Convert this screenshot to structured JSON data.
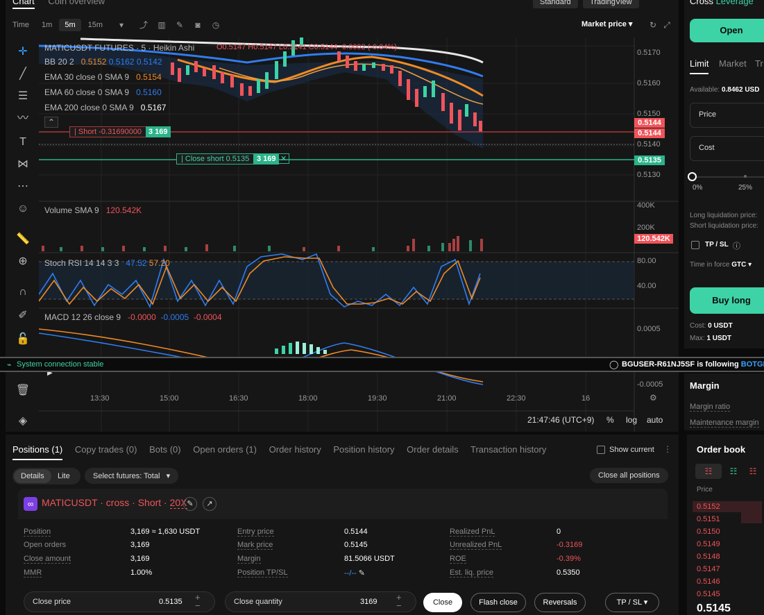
{
  "top": {
    "tabs": [
      "Chart",
      "Coin overview"
    ],
    "views": [
      "Standard",
      "TradingView"
    ],
    "timeframes": [
      "Time",
      "1m",
      "5m",
      "15m"
    ],
    "active_tf": "5m",
    "market_price": "Market price"
  },
  "chart": {
    "title": "MATICUSDT FUTURES · 5 · Heikin Ashi",
    "ohlc": "O0.5147 H0.5147 L0.5141 C0.5144 -0.0002 (-0.04%)",
    "bb": {
      "label": "BB 20 2",
      "v1": "0.5152",
      "v2": "0.5162",
      "v3": "0.5142"
    },
    "ema30": {
      "label": "EMA 30 close 0 SMA 9",
      "v": "0.5154"
    },
    "ema60": {
      "label": "EMA 60 close 0 SMA 9",
      "v": "0.5160"
    },
    "ema200": {
      "label": "EMA 200 close 0 SMA 9",
      "v": "0.5167"
    },
    "short_line": "Short -0.31690000",
    "short_qty": "3 169",
    "close_short": "Close short 0.5135",
    "close_qty": "3 169",
    "price_axis": [
      "0.5170",
      "0.5160",
      "0.5150",
      "0.5140",
      "0.5130"
    ],
    "tag1": "0.5144",
    "tag2": "0.5144",
    "tag3": "0.5135",
    "volume": {
      "label": "Volume SMA 9",
      "v": "120.542K",
      "axis": [
        "400K",
        "200K"
      ],
      "tag": "120.542K"
    },
    "stoch": {
      "label": "Stoch RSI 14 14 3 3",
      "k": "47.52",
      "d": "57.20",
      "axis": [
        "80.00",
        "40.00"
      ]
    },
    "macd": {
      "label": "MACD 12 26 close 9",
      "v1": "-0.0000",
      "v2": "-0.0005",
      "v3": "-0.0004",
      "axis": [
        "0.0005",
        "-0.0005"
      ]
    },
    "time_axis": [
      "13:30",
      "15:00",
      "16:30",
      "18:00",
      "19:30",
      "21:00",
      "22:30",
      "16"
    ],
    "clock": "21:47:46 (UTC+9)",
    "opts": [
      "%",
      "log",
      "auto"
    ]
  },
  "status": {
    "conn": "System connection stable",
    "follow": "BGUSER-R61NJ5SF  is following",
    "follow_name": "BOTGRA"
  },
  "order": {
    "mode": "Cross",
    "leverage": "Leverage",
    "open": "Open",
    "tabs": [
      "Limit",
      "Market",
      "Tr"
    ],
    "available_label": "Available:",
    "available": "0.8462 USD",
    "price": "Price",
    "cost": "Cost",
    "slider": [
      "0%",
      "25%"
    ],
    "long_liq": "Long liquidation price:",
    "short_liq": "Short liquidation price:",
    "tpsl": "TP / SL",
    "tif_label": "Time in force",
    "tif": "GTC",
    "buy": "Buy long",
    "cost_line": "Cost:",
    "cost_val": "0 USDT",
    "max_line": "Max:",
    "max_val": "1 USDT",
    "margin": "Margin",
    "margin_ratio": "Margin ratio",
    "maintenance": "Maintenance margin"
  },
  "orderbook": {
    "title": "Order book",
    "col": "Price",
    "rows": [
      "0.5152",
      "0.5151",
      "0.5150",
      "0.5149",
      "0.5148",
      "0.5147",
      "0.5146",
      "0.5145"
    ],
    "last": "0.5145"
  },
  "positions": {
    "tabs": [
      "Positions (1)",
      "Copy trades (0)",
      "Bots (0)",
      "Open orders (1)",
      "Order history",
      "Position history",
      "Order details",
      "Transaction history"
    ],
    "show_current": "Show current",
    "details": "Details",
    "lite": "Lite",
    "select": "Select futures: Total",
    "close_all": "Close all positions",
    "symbol": "MATICUSDT · cross · Short · ",
    "lev": "20X",
    "rows": [
      {
        "k1": "Position",
        "v1": "3,169 ≈ 1,630 USDT",
        "k2": "Entry price",
        "v2": "0.5144",
        "k3": "Realized PnL",
        "v3": "0"
      },
      {
        "k1": "Open orders",
        "v1": "3,169",
        "k2": "Mark price",
        "v2": "0.5145",
        "k3": "Unrealized PnL",
        "v3": "-0.3169"
      },
      {
        "k1": "Close amount",
        "v1": "3,169",
        "k2": "Margin",
        "v2": "81.5066 USDT",
        "k3": "ROE",
        "v3": "-0.39%"
      },
      {
        "k1": "MMR",
        "v1": "1.00%",
        "k2": "Position TP/SL",
        "v2": "--/--",
        "k3": "Est. liq. price",
        "v3": "0.5350"
      }
    ],
    "close_price_label": "Close price",
    "close_price": "0.5135",
    "close_qty_label": "Close quantity",
    "close_qty": "3169",
    "btn_close": "Close",
    "btn_flash": "Flash close",
    "btn_rev": "Reversals",
    "btn_tpsl": "TP / SL"
  },
  "colors": {
    "green": "#3dd3a6",
    "red": "#f0545a",
    "blue": "#2f7df0",
    "orange": "#f08a24"
  }
}
